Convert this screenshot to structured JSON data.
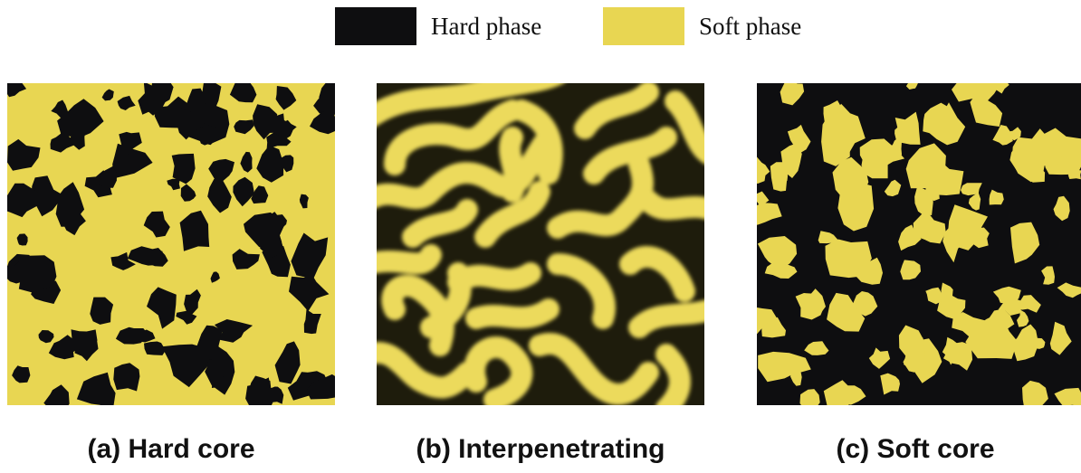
{
  "legend": {
    "items": [
      {
        "label": "Hard phase",
        "color": "#0e0e10"
      },
      {
        "label": "Soft phase",
        "color": "#e8d652"
      }
    ]
  },
  "panels": [
    {
      "caption": "(a) Hard core",
      "matrix": "#e8d652",
      "inclusion": "#0e0e10"
    },
    {
      "caption": "(b) Interpenetrating",
      "matrix": "#1e1c0c",
      "stripe": "#ecda5c"
    },
    {
      "caption": "(c) Soft core",
      "matrix": "#0e0e10",
      "inclusion": "#e8d652"
    }
  ]
}
